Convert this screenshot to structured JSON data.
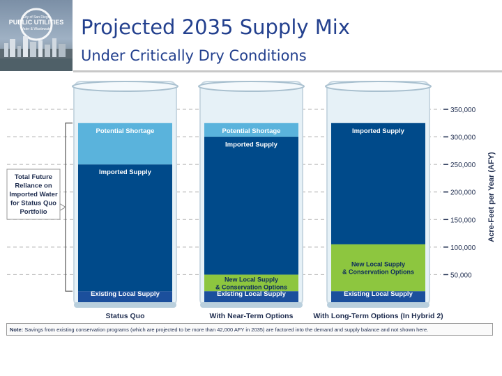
{
  "logo": {
    "line1": "City of San Diego",
    "line2": "PUBLIC UTILITIES",
    "line3": "Water & Wastewater"
  },
  "header": {
    "title": "Projected 2035 Supply Mix",
    "subtitle": "Under Critically Dry Conditions"
  },
  "callout": {
    "text_lines": [
      "Total Future",
      "Reliance on",
      "Imported Water",
      "for Status Quo",
      "Portfolio"
    ]
  },
  "note": {
    "prefix": "Note:",
    "text": "Savings from existing conservation programs (which are projected to be more than 42,000 AFY in 2035) are factored into the demand and supply balance and not shown here."
  },
  "chart_data": {
    "type": "bar",
    "stacked": true,
    "style": "water-glass beakers",
    "ylabel": "Acre-Feet per Year (AFY)",
    "ylim": [
      0,
      350000
    ],
    "yticks": [
      "350,000",
      "300,000",
      "250,000",
      "200,000",
      "150,000",
      "100,000",
      "50,000"
    ],
    "ytick_values": [
      350000,
      300000,
      250000,
      200000,
      150000,
      100000,
      50000
    ],
    "categories": [
      "Status Quo",
      "With Near-Term Options",
      "With Long-Term Options (In Hybrid 2)"
    ],
    "total_demand": 325000,
    "series": [
      {
        "name": "Existing Local Supply",
        "color": "#1b4f9c",
        "values": [
          20000,
          20000,
          20000
        ]
      },
      {
        "name": "New Local Supply & Conservation Options",
        "color": "#8dc63f",
        "values": [
          0,
          30000,
          85000
        ]
      },
      {
        "name": "Imported Supply",
        "color": "#004a8a",
        "values": [
          230000,
          250000,
          220000
        ]
      },
      {
        "name": "Potential Shortage",
        "color": "#5ab3dc",
        "values": [
          75000,
          25000,
          0
        ]
      }
    ],
    "segment_labels": [
      [
        "Existing Local Supply",
        "",
        "Imported Supply",
        "Potential Shortage"
      ],
      [
        "Existing Local Supply",
        "New Local Supply & Conservation Options",
        "Imported Supply",
        "Potential Shortage"
      ],
      [
        "Existing Local Supply",
        "New Local Supply & Conservation Options",
        "Imported Supply",
        ""
      ]
    ]
  }
}
